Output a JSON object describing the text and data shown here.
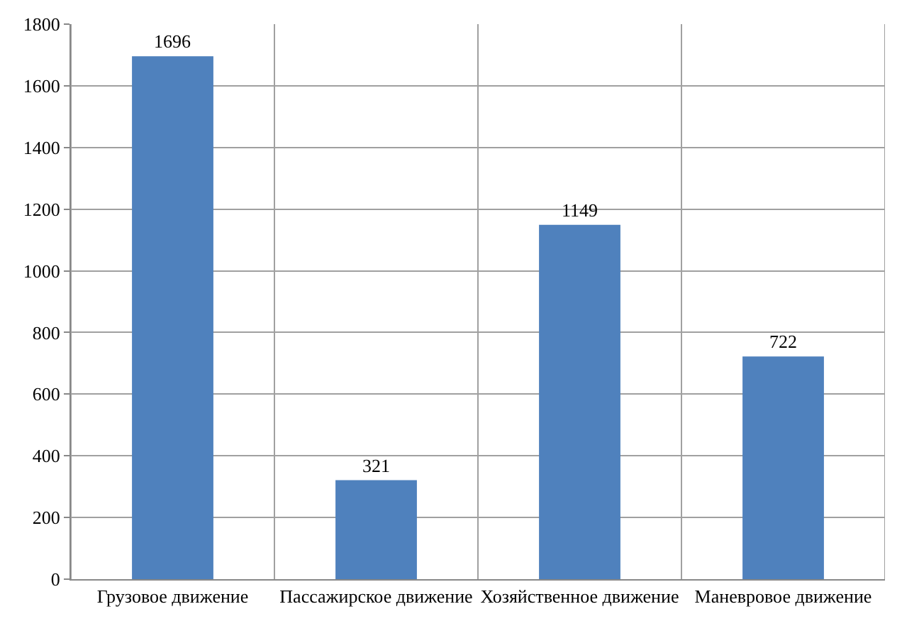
{
  "chart_data": {
    "type": "bar",
    "categories": [
      "Грузовое движение",
      "Пассажирское движение",
      "Хозяйственное движение",
      "Маневровое движение"
    ],
    "values": [
      1696,
      321,
      1149,
      722
    ],
    "color": "#4f81bd",
    "ylim": [
      0,
      1800
    ],
    "yticks": [
      0,
      200,
      400,
      600,
      800,
      1000,
      1200,
      1400,
      1600,
      1800
    ],
    "grid": true,
    "data_labels": true,
    "legend": false
  }
}
